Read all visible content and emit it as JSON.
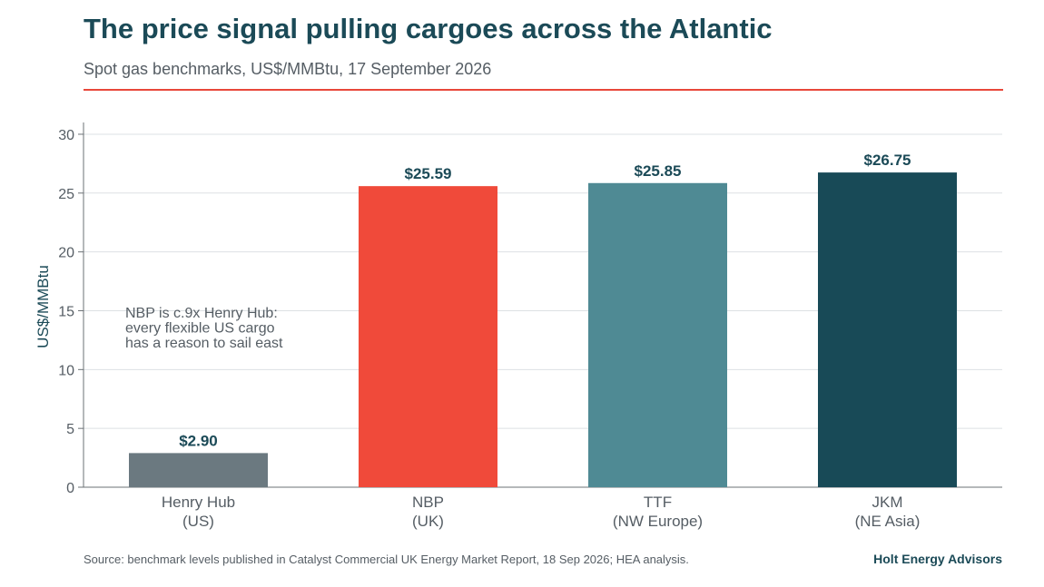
{
  "header": {
    "title": "The price signal pulling cargoes across the Atlantic",
    "subtitle": "Spot gas benchmarks, US$/MMBtu, 17 September 2026"
  },
  "footer": {
    "source": "Source: benchmark levels published in Catalyst Commercial UK Energy Market Report, 18 Sep 2026; HEA analysis.",
    "brand": "Holt Energy Advisors"
  },
  "chart_data": {
    "type": "bar",
    "categories": [
      [
        "Henry Hub",
        "(US)"
      ],
      [
        "NBP",
        "(UK)"
      ],
      [
        "TTF",
        "(NW Europe)"
      ],
      [
        "JKM",
        "(NE Asia)"
      ]
    ],
    "values": [
      2.9,
      25.59,
      25.85,
      26.75
    ],
    "data_labels": [
      "$2.90",
      "$25.59",
      "$25.85",
      "$26.75"
    ],
    "bar_colors": [
      "#6b7980",
      "#f04a3a",
      "#4f8a94",
      "#184a57"
    ],
    "ylabel": "US$/MMBtu",
    "ylim": [
      0,
      31
    ],
    "yticks": [
      0,
      5,
      10,
      15,
      20,
      25,
      30
    ],
    "grid": true,
    "annotation": [
      "NBP is c.9x Henry Hub:",
      "every flexible US cargo",
      "has a reason to sail east"
    ]
  }
}
